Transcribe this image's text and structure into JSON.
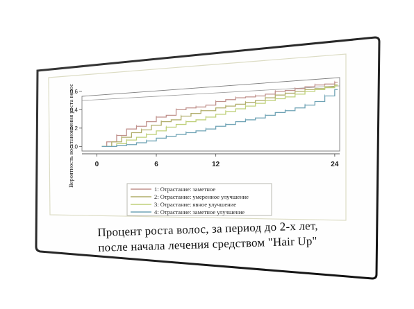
{
  "caption": {
    "line1": "Процент роста  волос, за период до 2-х лет,",
    "line2": "после начала лечения средством \"Hair Up\""
  },
  "chart_data": {
    "type": "line",
    "xlabel": "",
    "ylabel": "Вероятность восстановления роста волос",
    "x_ticks": [
      0,
      6,
      12,
      24
    ],
    "y_ticks": [
      0.0,
      0.2,
      0.4,
      0.6
    ],
    "xlim": [
      -1.5,
      24.5
    ],
    "ylim": [
      -0.05,
      0.72
    ],
    "reference_line": [
      [
        -1.5,
        0.5
      ],
      [
        24.5,
        0.66
      ]
    ],
    "series": [
      {
        "name": "1:  Отрастание: заметное",
        "color": "#c0918c",
        "points": [
          [
            0.5,
            0
          ],
          [
            1,
            0.05
          ],
          [
            2,
            0.12
          ],
          [
            3,
            0.19
          ],
          [
            4,
            0.22
          ],
          [
            5,
            0.27
          ],
          [
            6,
            0.32
          ],
          [
            7,
            0.34
          ],
          [
            8,
            0.4
          ],
          [
            9,
            0.42
          ],
          [
            10,
            0.43
          ],
          [
            11,
            0.45
          ],
          [
            12,
            0.49
          ],
          [
            13,
            0.51
          ],
          [
            14,
            0.53
          ],
          [
            15,
            0.54
          ],
          [
            16,
            0.55
          ],
          [
            17,
            0.57
          ],
          [
            18,
            0.6
          ],
          [
            19,
            0.61
          ],
          [
            20,
            0.63
          ],
          [
            21,
            0.65
          ],
          [
            22,
            0.67
          ],
          [
            23,
            0.68
          ],
          [
            24,
            0.7
          ]
        ]
      },
      {
        "name": "2:  Отрастание: умеренное улучшение",
        "color": "#b0ad6a",
        "points": [
          [
            0.5,
            0
          ],
          [
            1.5,
            0.05
          ],
          [
            2.5,
            0.1
          ],
          [
            3.5,
            0.15
          ],
          [
            4.5,
            0.18
          ],
          [
            5.5,
            0.23
          ],
          [
            6.5,
            0.27
          ],
          [
            7.5,
            0.29
          ],
          [
            8.5,
            0.33
          ],
          [
            9.5,
            0.36
          ],
          [
            10.5,
            0.39
          ],
          [
            12,
            0.42
          ],
          [
            13,
            0.44
          ],
          [
            14,
            0.46
          ],
          [
            15,
            0.48
          ],
          [
            16,
            0.5
          ],
          [
            17,
            0.53
          ],
          [
            18,
            0.56
          ],
          [
            19,
            0.58
          ],
          [
            20,
            0.6
          ],
          [
            21,
            0.62
          ],
          [
            22,
            0.63
          ],
          [
            23,
            0.65
          ],
          [
            24,
            0.67
          ]
        ]
      },
      {
        "name": "3:  Отрастание: явное улучшение",
        "color": "#bfd07a",
        "points": [
          [
            0.5,
            0
          ],
          [
            2,
            0.03
          ],
          [
            3,
            0.07
          ],
          [
            4,
            0.1
          ],
          [
            5,
            0.13
          ],
          [
            6,
            0.17
          ],
          [
            7,
            0.21
          ],
          [
            8,
            0.24
          ],
          [
            9,
            0.27
          ],
          [
            10,
            0.29
          ],
          [
            11,
            0.32
          ],
          [
            12,
            0.35
          ],
          [
            13,
            0.38
          ],
          [
            14,
            0.41
          ],
          [
            15,
            0.44
          ],
          [
            16,
            0.47
          ],
          [
            17,
            0.5
          ],
          [
            18,
            0.52
          ],
          [
            19,
            0.54
          ],
          [
            20,
            0.57
          ],
          [
            21,
            0.6
          ],
          [
            22,
            0.62
          ],
          [
            23,
            0.64
          ],
          [
            24,
            0.66
          ]
        ]
      },
      {
        "name": "4:  Отрастание: заметное улучшение",
        "color": "#6fa3b5",
        "points": [
          [
            0.5,
            0
          ],
          [
            2,
            0.01
          ],
          [
            3,
            0.02
          ],
          [
            4,
            0.04
          ],
          [
            5,
            0.06
          ],
          [
            6,
            0.09
          ],
          [
            7,
            0.11
          ],
          [
            8,
            0.13
          ],
          [
            9,
            0.15
          ],
          [
            10,
            0.17
          ],
          [
            11,
            0.19
          ],
          [
            12,
            0.22
          ],
          [
            13,
            0.24
          ],
          [
            14,
            0.27
          ],
          [
            15,
            0.29
          ],
          [
            16,
            0.31
          ],
          [
            17,
            0.34
          ],
          [
            18,
            0.37
          ],
          [
            19,
            0.39
          ],
          [
            20,
            0.42
          ],
          [
            21,
            0.45
          ],
          [
            22,
            0.49
          ],
          [
            23,
            0.55
          ],
          [
            24,
            0.62
          ]
        ]
      }
    ]
  }
}
